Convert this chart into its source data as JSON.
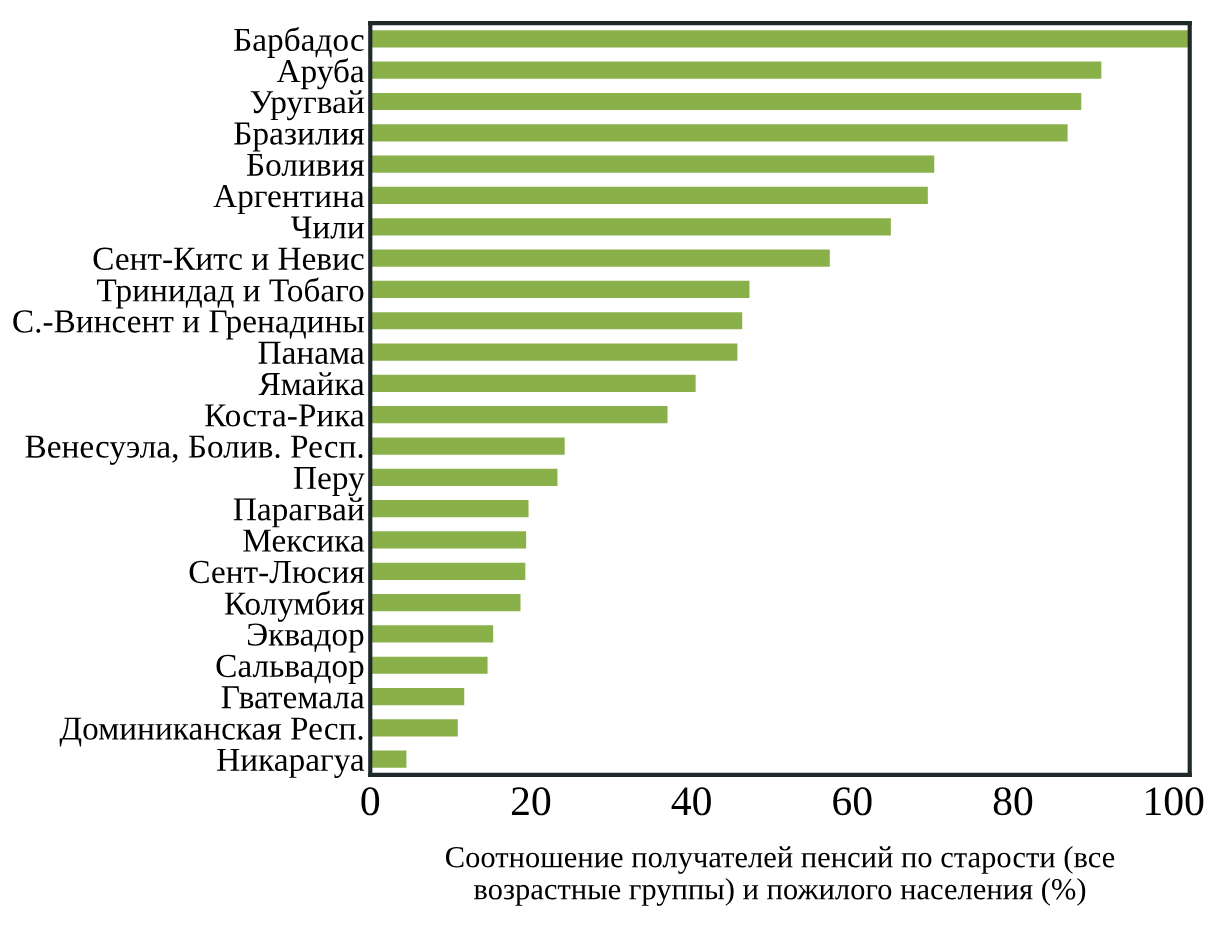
{
  "chart_data": {
    "type": "bar",
    "orientation": "horizontal",
    "categories": [
      "Барбадос",
      "Аруба",
      "Уругвай",
      "Бразилия",
      "Боливия",
      "Аргентина",
      "Чили",
      "Сент-Китс и Невис",
      "Тринидад и Тобаго",
      "С.-Винсент и Гренадины",
      "Панама",
      "Ямайка",
      "Коста-Рика",
      "Венесуэла, Болив. Респ.",
      "Перу",
      "Парагвай",
      "Мексика",
      "Сент-Люсия",
      "Колумбия",
      "Эквадор",
      "Сальвадор",
      "Гватемала",
      "Доминиканская Респ.",
      "Никарагуа"
    ],
    "values": [
      102,
      91.0,
      88.5,
      86.8,
      70.2,
      69.4,
      64.8,
      57.2,
      47.2,
      46.3,
      45.7,
      40.5,
      37.0,
      24.2,
      23.3,
      19.7,
      19.4,
      19.3,
      18.7,
      15.3,
      14.6,
      11.7,
      10.9,
      4.5
    ],
    "color": "#8ab04a",
    "xlabel": "Соотношение получателей пенсий по старости (все\nвозрастные группы) и пожилого населения (%)",
    "xlim": [
      0,
      102
    ],
    "xticks": [
      0,
      20,
      40,
      60,
      80,
      100
    ],
    "grid": false,
    "legend": false
  }
}
